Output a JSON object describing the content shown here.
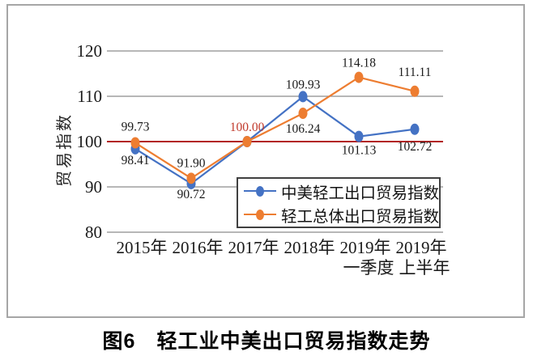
{
  "figure_caption": "图6　轻工业中美出口贸易指数走势",
  "legend": {
    "entries": [
      "中美轻工出口贸易指数",
      "轻工总体出口贸易指数"
    ]
  },
  "colors": {
    "series_blue": "#4472C4",
    "series_orange": "#ED7D31",
    "reference_line": "#B22222",
    "highlight_label": "#C0392B",
    "gridline": "#8c8c8c",
    "frame_border": "#a6a6a6",
    "text": "#1a1a1a"
  },
  "chart_data": {
    "type": "line",
    "title": "",
    "xlabel": "",
    "ylabel": "贸易指数",
    "ylim": [
      80,
      120
    ],
    "yticks": [
      80,
      90,
      100,
      110,
      120
    ],
    "grid": true,
    "legend_position": "inside bottom-right",
    "reference_line": {
      "value": 100,
      "color": "#B22222"
    },
    "categories": [
      {
        "line1": "2015年",
        "line2": ""
      },
      {
        "line1": "2016年",
        "line2": ""
      },
      {
        "line1": "2017年",
        "line2": ""
      },
      {
        "line1": "2018年",
        "line2": ""
      },
      {
        "line1": "2019年",
        "line2": "一季度"
      },
      {
        "line1": "2019年",
        "line2": "上半年"
      }
    ],
    "series": [
      {
        "name": "中美轻工出口贸易指数",
        "color": "#4472C4",
        "values": [
          98.41,
          90.72,
          100,
          109.93,
          101.13,
          102.72
        ],
        "point_labels": [
          {
            "text": "98.41",
            "dy": 19
          },
          {
            "text": "90.72",
            "dy": 18
          },
          null,
          {
            "text": "109.93",
            "dy": -10
          },
          {
            "text": "101.13",
            "dy": 22
          },
          {
            "text": "102.72",
            "dy": 26
          }
        ]
      },
      {
        "name": "轻工总体出口贸易指数",
        "color": "#ED7D31",
        "values": [
          99.73,
          91.9,
          100,
          106.24,
          114.18,
          111.11
        ],
        "point_labels": [
          {
            "text": "99.73",
            "dy": -15
          },
          {
            "text": "91.90",
            "dy": -14
          },
          {
            "text": "100.00",
            "dy": -13,
            "color": "#C0392B"
          },
          {
            "text": "106.24",
            "dy": 24
          },
          {
            "text": "114.18",
            "dy": -13
          },
          {
            "text": "111.11",
            "dy": -19
          }
        ]
      }
    ]
  }
}
